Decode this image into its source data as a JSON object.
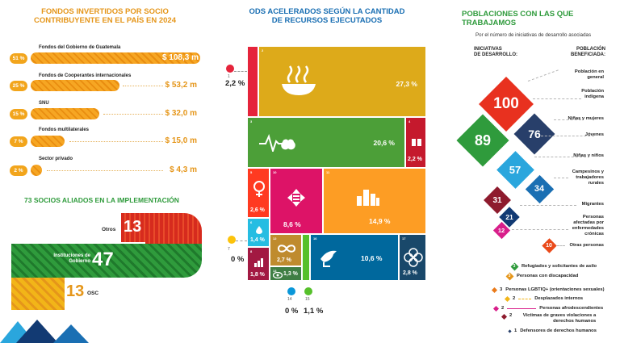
{
  "funds": {
    "title_line1": "FONDOS INVERTIDOS POR SOCIO",
    "title_line2": "CONTRIBUYENTE EN EL PAÍS EN 2024",
    "items": [
      {
        "label": "Fondos del Gobierno de Guatemala",
        "pct": "51 %",
        "amount": "$ 108,3 m"
      },
      {
        "label": "Fondos de Cooperantes internacionales",
        "pct": "25 %",
        "amount": "$ 53,2 m"
      },
      {
        "label": "SNU",
        "pct": "15 %",
        "amount": "$ 32,0 m"
      },
      {
        "label": "Fondos multilaterales",
        "pct": "7 %",
        "amount": "$ 15,0 m"
      },
      {
        "label": "Sector privado",
        "pct": "2 %",
        "amount": "$ 4,3 m"
      }
    ]
  },
  "partners": {
    "title": "73 SOCIOS ALIADOS EN LA IMPLEMENTACIÓN",
    "otros_label": "Otros",
    "otros_value": "13",
    "gov_label": "Instituciones de Gobierno",
    "gov_value": "47",
    "osc_label": "OSC",
    "osc_value": "13"
  },
  "sdg": {
    "title_line1": "ODS ACELERADOS SEGÚN LA CANTIDAD",
    "title_line2": "DE RECURSOS EJECUTADOS",
    "tiles": [
      {
        "num": "2",
        "pct": "27,3 %"
      },
      {
        "num": "3",
        "pct": "20,6 %"
      },
      {
        "num": "4",
        "pct": "2,2 %"
      },
      {
        "num": "5",
        "pct": "2,6 %"
      },
      {
        "num": "10",
        "pct": "8,6 %"
      },
      {
        "num": "11",
        "pct": "14,9 %"
      },
      {
        "num": "6",
        "pct": "1,4 %"
      },
      {
        "num": "12",
        "pct": "2,7 %"
      },
      {
        "num": "8",
        "pct": "1,8 %"
      },
      {
        "num": "13",
        "pct": "1,3 %"
      },
      {
        "num": "16",
        "pct": "10,6 %"
      },
      {
        "num": "17",
        "pct": "2,8 %"
      }
    ],
    "side": {
      "sdg1_num": "1",
      "sdg1_pct": "2,2 %",
      "sdg7_num": "7",
      "sdg7_pct": "0 %",
      "sdg14_num": "14",
      "sdg14_pct": "0 %",
      "sdg15_num": "15",
      "sdg15_pct": "1,1 %"
    }
  },
  "populations": {
    "title": "POBLACIONES CON LAS QUE TRABAJAMOS",
    "subtitle": "Por el número de iniciativas de desarrollo asociadas",
    "col_left": [
      "INICIATIVAS",
      "DE DESARROLLO:"
    ],
    "col_right": [
      "POBLACIÓN",
      "BENEFICIADA:"
    ],
    "diamonds": [
      {
        "value": "100",
        "color": "#e8311f"
      },
      {
        "value": "89",
        "color": "#2f9b3c"
      },
      {
        "value": "76",
        "color": "#283f6a"
      },
      {
        "value": "57",
        "color": "#2aa6dd"
      },
      {
        "value": "34",
        "color": "#1a6fb3"
      },
      {
        "value": "31",
        "color": "#8e1b2e"
      },
      {
        "value": "21",
        "color": "#123a73"
      },
      {
        "value": "12",
        "color": "#d81e8a"
      },
      {
        "value": "10",
        "color": "#ea4a1a"
      }
    ],
    "labels": [
      "Población en general",
      "Población indígena",
      "Niñas y mujeres",
      "Jóvenes",
      "Niñas y niños",
      "Campesinos y trabajadores rurales",
      "Migrantes",
      "Personas afectadas por enfermedades crónicas",
      "Otras personas"
    ],
    "small": [
      {
        "value": "3",
        "label": "Refugiados y solicitantes de asilo",
        "color": "#2f9b3c"
      },
      {
        "value": "3",
        "label": "Personas con discapacidad",
        "color": "#e5961a"
      },
      {
        "value": "3",
        "label": "Personas LGBTIQ+ (orientaciones sexuales)",
        "color": "#ea7a1a"
      },
      {
        "value": "2",
        "label": "Desplazados internos",
        "color": "#f2b518"
      },
      {
        "value": "2",
        "label": "Personas afrodescendientes",
        "color": "#d81e8a"
      },
      {
        "value": "2",
        "label": "Víctimas de graves violaciones a derechos humanos",
        "color": "#8e1b2e"
      },
      {
        "value": "1",
        "label": "Defensores de derechos humanos",
        "color": "#283f6a"
      }
    ]
  }
}
